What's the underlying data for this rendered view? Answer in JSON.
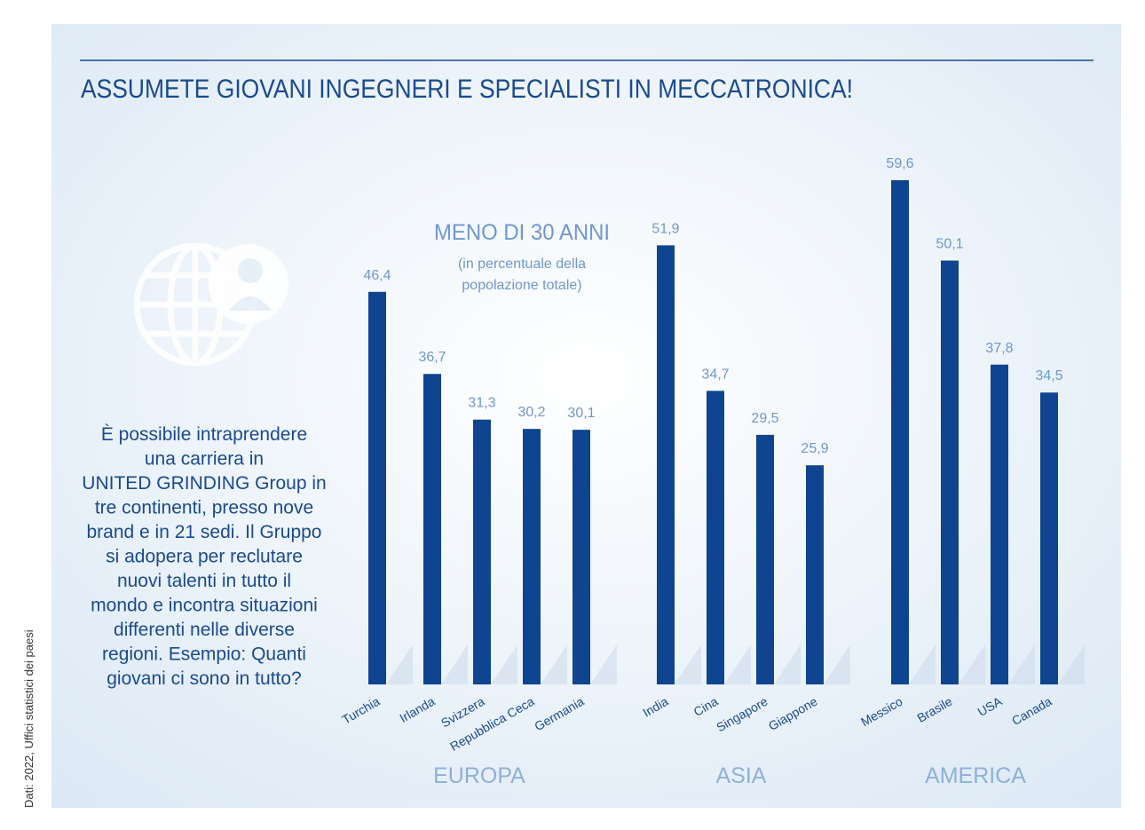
{
  "chart_data": {
    "type": "bar",
    "title": "ASSUMETE GIOVANI INGEGNERI E SPECIALISTI IN MECCATRONICA!",
    "subtitle": "MENO DI 30 ANNI",
    "note": [
      "(in percentuale della",
      "popolazione totale)"
    ],
    "groups": [
      "EUROPA",
      "ASIA",
      "AMERICA"
    ],
    "categories": [
      "Turchia",
      "Irlanda",
      "Svizzera",
      "Repubblica Ceca",
      "Germania",
      "India",
      "Cina",
      "Singapore",
      "Giappone",
      "Messico",
      "Brasile",
      "USA",
      "Canada"
    ],
    "values": [
      46.4,
      36.7,
      31.3,
      30.2,
      30.1,
      51.9,
      34.7,
      29.5,
      25.9,
      59.6,
      50.1,
      37.8,
      34.5
    ],
    "value_labels": [
      "46,4",
      "36,7",
      "31,3",
      "30,2",
      "30,1",
      "51,9",
      "34,7",
      "29,5",
      "25,9",
      "59,6",
      "50,1",
      "37,8",
      "34,5"
    ],
    "color": "#0f4490"
  },
  "text": {
    "paragraph": [
      "È possibile intraprendere",
      "una carriera in",
      "UNITED GRINDING Group in",
      "tre continenti, presso nove",
      "brand e in 21 sedi. Il Gruppo",
      "si adopera per reclutare",
      "nuovi talenti in tutto il",
      "mondo e incontra situazioni",
      "differenti nelle diverse",
      "regioni. Esempio: Quanti",
      "giovani ci sono in tutto?"
    ],
    "source": "Dati: 2022, Uffici statistici dei paesi"
  }
}
